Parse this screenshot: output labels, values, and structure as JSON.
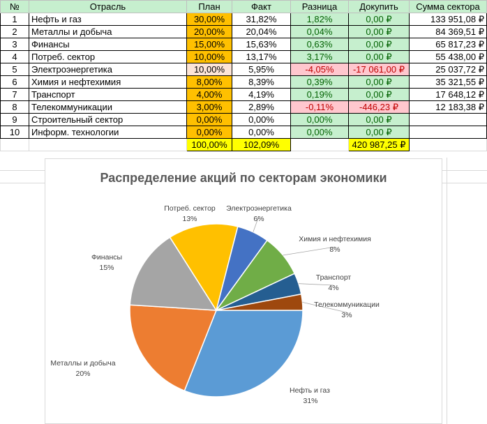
{
  "table": {
    "headers": [
      "№",
      "Отрасль",
      "План",
      "Факт",
      "Разница",
      "Докупить",
      "Сумма сектора"
    ],
    "rows": [
      {
        "n": "1",
        "name": "Нефть и газ",
        "plan": "30,00%",
        "fact": "31,82%",
        "diff": "1,82%",
        "buy": "0,00 ₽",
        "sum": "133 951,08 ₽",
        "plan_style": "y",
        "diff_style": "green"
      },
      {
        "n": "2",
        "name": "Металлы и добыча",
        "plan": "20,00%",
        "fact": "20,04%",
        "diff": "0,04%",
        "buy": "0,00 ₽",
        "sum": "84 369,51 ₽",
        "plan_style": "y",
        "diff_style": "green"
      },
      {
        "n": "3",
        "name": "Финансы",
        "plan": "15,00%",
        "fact": "15,63%",
        "diff": "0,63%",
        "buy": "0,00 ₽",
        "sum": "65 817,23 ₽",
        "plan_style": "y",
        "diff_style": "green"
      },
      {
        "n": "4",
        "name": "Потреб. сектор",
        "plan": "10,00%",
        "fact": "13,17%",
        "diff": "3,17%",
        "buy": "0,00 ₽",
        "sum": "55 438,00 ₽",
        "plan_style": "y",
        "diff_style": "green"
      },
      {
        "n": "5",
        "name": "Электроэнергетика",
        "plan": "10,00%",
        "fact": "5,95%",
        "diff": "-4,05%",
        "buy": "-17 061,00 ₽",
        "sum": "25 037,72 ₽",
        "plan_style": "p",
        "diff_style": "red"
      },
      {
        "n": "6",
        "name": "Химия и нефтехимия",
        "plan": "8,00%",
        "fact": "8,39%",
        "diff": "0,39%",
        "buy": "0,00 ₽",
        "sum": "35 321,55 ₽",
        "plan_style": "y",
        "diff_style": "green"
      },
      {
        "n": "7",
        "name": "Транспорт",
        "plan": "4,00%",
        "fact": "4,19%",
        "diff": "0,19%",
        "buy": "0,00 ₽",
        "sum": "17 648,12 ₽",
        "plan_style": "y",
        "diff_style": "green"
      },
      {
        "n": "8",
        "name": "Телекоммуникации",
        "plan": "3,00%",
        "fact": "2,89%",
        "diff": "-0,11%",
        "buy": "-446,23 ₽",
        "sum": "12 183,38 ₽",
        "plan_style": "y",
        "diff_style": "red"
      },
      {
        "n": "9",
        "name": "Строительный сектор",
        "plan": "0,00%",
        "fact": "0,00%",
        "diff": "0,00%",
        "buy": "0,00 ₽",
        "sum": "",
        "plan_style": "y",
        "diff_style": "green"
      },
      {
        "n": "10",
        "name": "Информ. технологии",
        "plan": "0,00%",
        "fact": "0,00%",
        "diff": "0,00%",
        "buy": "0,00 ₽",
        "sum": "",
        "plan_style": "y",
        "diff_style": "green"
      }
    ],
    "totals": {
      "plan": "100,00%",
      "fact": "102,09%",
      "buy": "420 987,25 ₽"
    }
  },
  "chart_data": {
    "type": "pie",
    "title": "Распределение акций по секторам экономики",
    "slices": [
      {
        "label": "Нефть и газ",
        "value": 31,
        "pct_label": "31%",
        "color": "#5b9bd5"
      },
      {
        "label": "Металлы и добыча",
        "value": 20,
        "pct_label": "20%",
        "color": "#ed7d31"
      },
      {
        "label": "Финансы",
        "value": 15,
        "pct_label": "15%",
        "color": "#a5a5a5"
      },
      {
        "label": "Потреб. сектор",
        "value": 13,
        "pct_label": "13%",
        "color": "#ffc000"
      },
      {
        "label": "Электроэнергетика",
        "value": 6,
        "pct_label": "6%",
        "color": "#4472c4"
      },
      {
        "label": "Химия и нефтехимия",
        "value": 8,
        "pct_label": "8%",
        "color": "#70ad47"
      },
      {
        "label": "Транспорт",
        "value": 4,
        "pct_label": "4%",
        "color": "#255e91"
      },
      {
        "label": "Телекоммуникации",
        "value": 3,
        "pct_label": "3%",
        "color": "#9e480e"
      }
    ],
    "start": "3 o'clock, clockwise",
    "labels": "outside with leader lines"
  }
}
